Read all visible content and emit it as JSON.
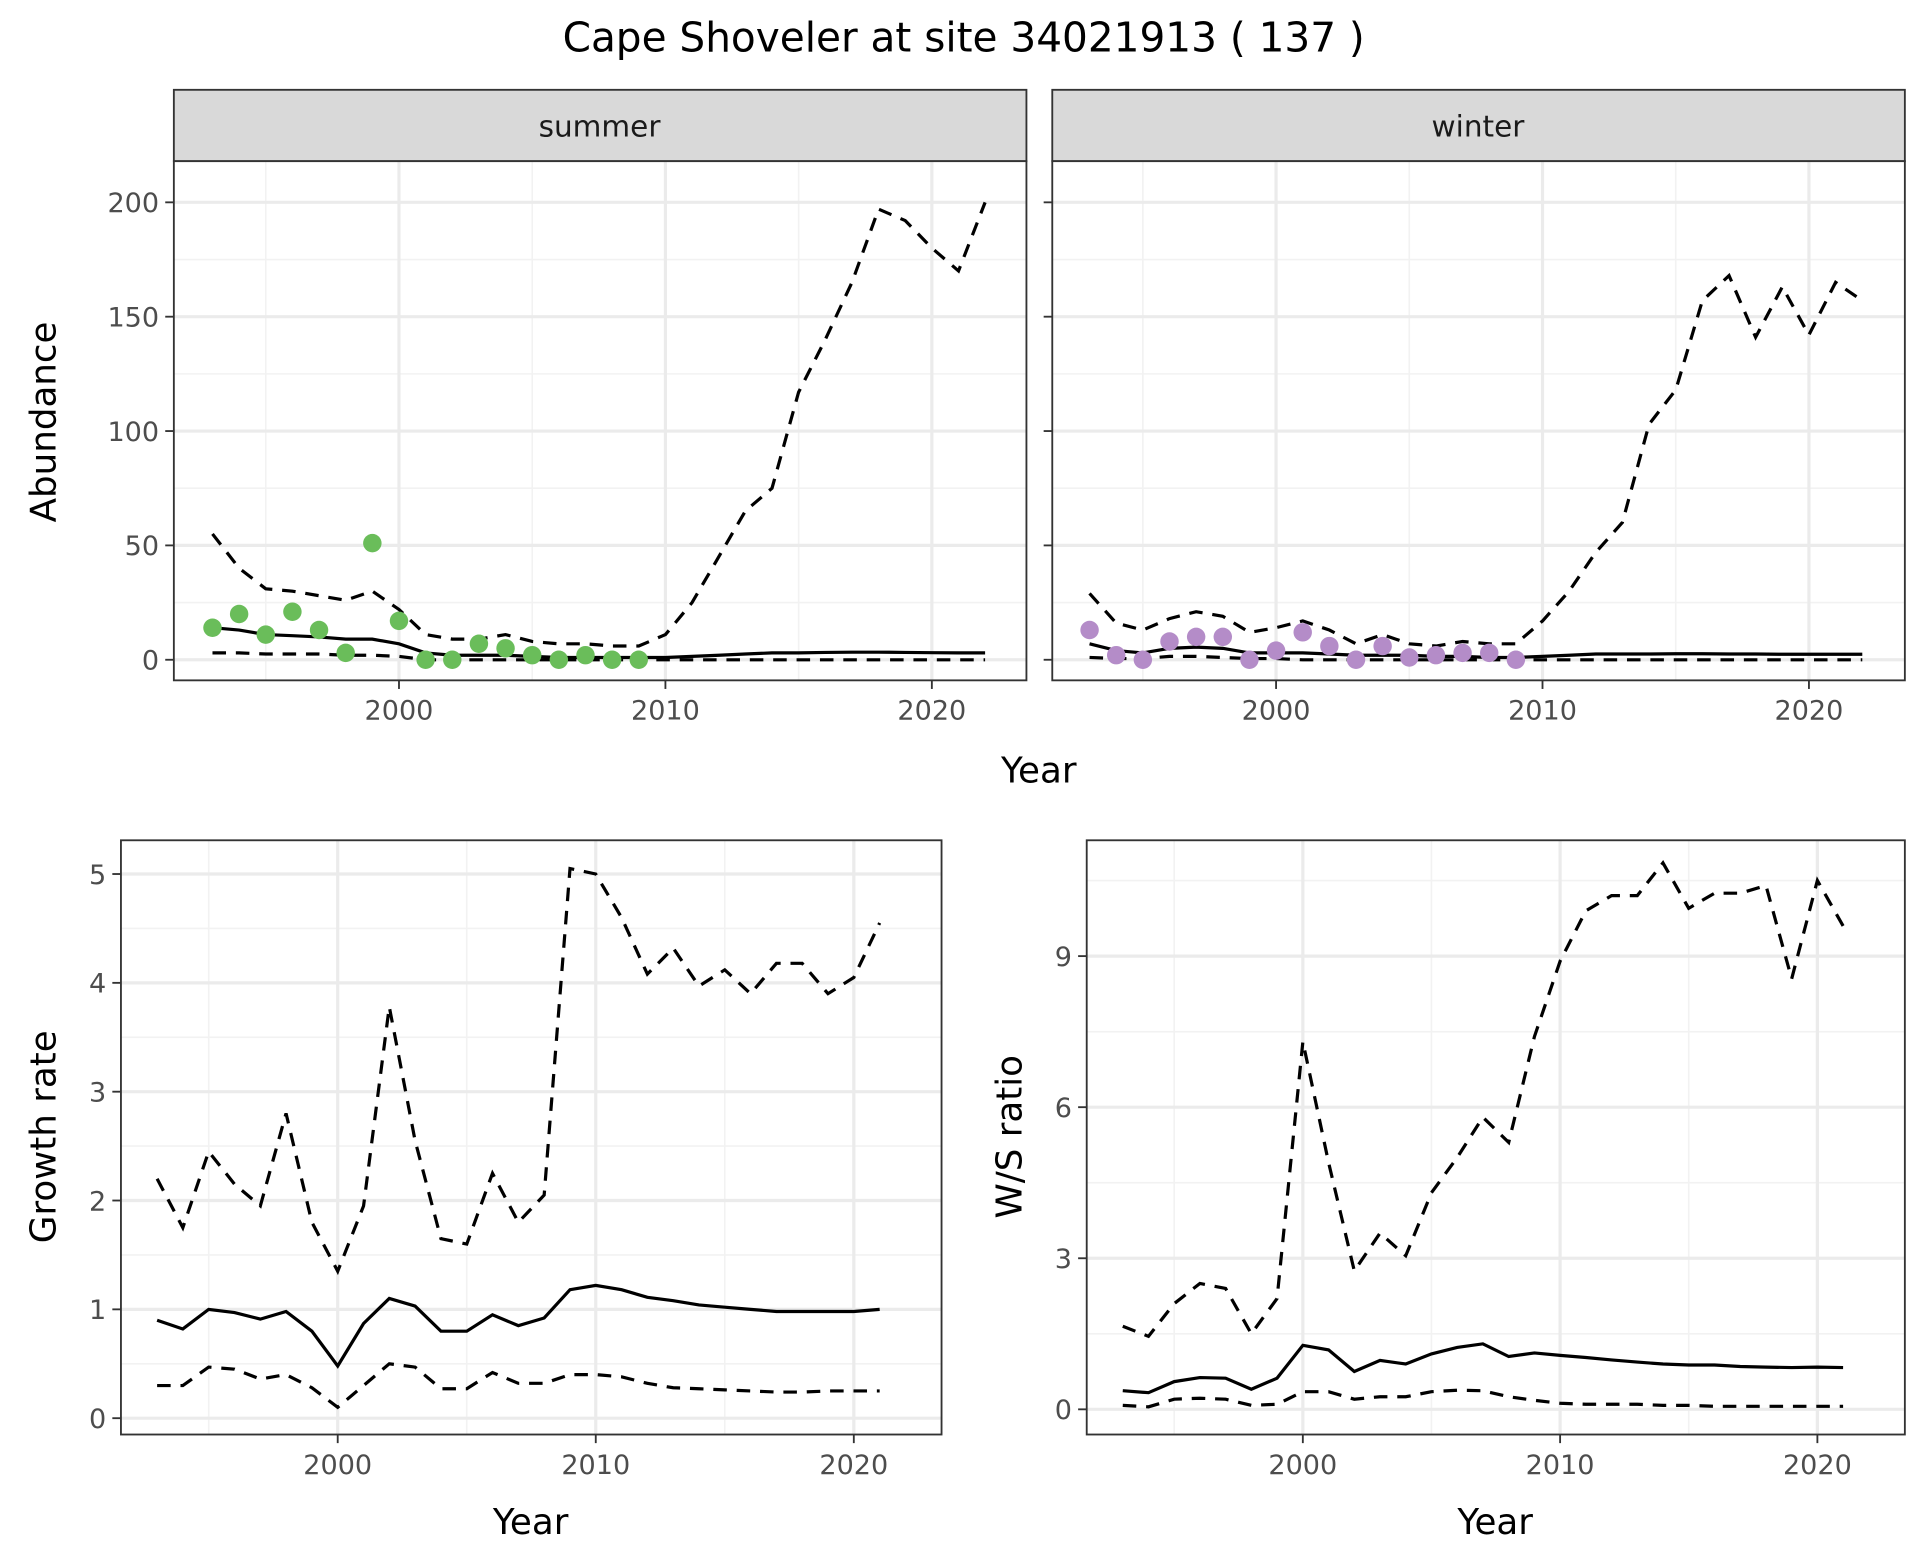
{
  "title": "Cape Shoveler at site 34021913 ( 137 )",
  "colors": {
    "summer": "#6abd5a",
    "winter": "#b48cc8",
    "line": "#000000",
    "strip": "#d9d9d9"
  },
  "chart_data": [
    {
      "type": "line",
      "id": "summer",
      "strip": "summer",
      "xlabel": "Year",
      "ylabel": "Abundance",
      "xlim": [
        1991.55,
        2023.55
      ],
      "ylim": [
        -9,
        218
      ],
      "xticks": [
        2000,
        2010,
        2020
      ],
      "xticks_labels": [
        "2000",
        "2010",
        "2020"
      ],
      "xminor": [
        1995,
        2005,
        2015
      ],
      "yticks": [
        0,
        50,
        100,
        150,
        200
      ],
      "yticks_labels": [
        "0",
        "50",
        "100",
        "150",
        "200"
      ],
      "yminor": [
        25,
        75,
        125,
        175
      ],
      "show_ylabels": true,
      "x": [
        1993,
        1994,
        1995,
        1996,
        1997,
        1998,
        1999,
        2000,
        2001,
        2002,
        2003,
        2004,
        2005,
        2006,
        2007,
        2008,
        2009,
        2010,
        2011,
        2012,
        2013,
        2014,
        2015,
        2016,
        2017,
        2018,
        2019,
        2020,
        2021,
        2022
      ],
      "mean": [
        14,
        13,
        11,
        10.5,
        10,
        9,
        9,
        7,
        3,
        2,
        2,
        2,
        1.5,
        1,
        1,
        1,
        1,
        1,
        1.5,
        2,
        2.5,
        3,
        3,
        3.2,
        3.3,
        3.3,
        3.2,
        3.1,
        3,
        3
      ],
      "upper": [
        55,
        40,
        31,
        30,
        28,
        26,
        30,
        22,
        11,
        9,
        9,
        11,
        8,
        7,
        7,
        6,
        6,
        11,
        25,
        45,
        65,
        75,
        117,
        140,
        165,
        197,
        192,
        180,
        170,
        200
      ],
      "lower": [
        3,
        3,
        2.5,
        2.5,
        2.5,
        2,
        2,
        1.5,
        0,
        0,
        0,
        0,
        0,
        0,
        0,
        0,
        0,
        0,
        0,
        0,
        0,
        0,
        0,
        0,
        0,
        0,
        0,
        0,
        0,
        0
      ],
      "points_x": [
        1993,
        1994,
        1995,
        1996,
        1997,
        1998,
        1999,
        2000,
        2001,
        2002,
        2003,
        2004,
        2005,
        2006,
        2007,
        2008,
        2009
      ],
      "points_y": [
        14,
        20,
        11,
        21,
        13,
        3,
        51,
        17,
        0,
        0,
        7,
        5,
        2,
        0,
        2,
        0,
        0
      ]
    },
    {
      "type": "line",
      "id": "winter",
      "strip": "winter",
      "xlabel": "Year",
      "ylabel": "",
      "xlim": [
        1991.6,
        2023.6
      ],
      "ylim": [
        -9,
        218
      ],
      "xticks": [
        2000,
        2010,
        2020
      ],
      "xticks_labels": [
        "2000",
        "2010",
        "2020"
      ],
      "xminor": [
        1995,
        2005,
        2015
      ],
      "yticks": [
        0,
        50,
        100,
        150,
        200
      ],
      "yticks_labels": [
        "0",
        "50",
        "100",
        "150",
        "200"
      ],
      "yminor": [
        25,
        75,
        125,
        175
      ],
      "show_ylabels": false,
      "x": [
        1993,
        1994,
        1995,
        1996,
        1997,
        1998,
        1999,
        2000,
        2001,
        2002,
        2003,
        2004,
        2005,
        2006,
        2007,
        2008,
        2009,
        2010,
        2011,
        2012,
        2013,
        2014,
        2015,
        2016,
        2017,
        2018,
        2019,
        2020,
        2021,
        2022
      ],
      "mean": [
        7,
        4,
        3,
        5,
        5.5,
        5,
        3,
        3,
        3,
        2.5,
        2,
        2,
        2,
        1.5,
        1.5,
        1,
        1,
        1.5,
        2,
        2.5,
        2.5,
        2.5,
        2.6,
        2.6,
        2.5,
        2.5,
        2.4,
        2.4,
        2.4,
        2.4
      ],
      "upper": [
        29,
        16,
        13,
        18,
        21,
        19,
        12,
        14,
        17,
        13,
        7,
        11,
        7,
        6,
        8,
        7,
        7,
        17,
        30,
        47,
        60,
        103,
        118,
        157,
        168,
        141,
        163,
        142,
        165,
        157
      ],
      "lower": [
        1,
        0.5,
        0.5,
        1.5,
        1.5,
        1,
        0.5,
        0.5,
        0,
        0,
        0,
        0,
        0,
        0,
        0,
        0,
        0,
        0,
        0,
        0,
        0,
        0,
        0,
        0,
        0,
        0,
        0,
        0,
        0,
        0
      ],
      "points_x": [
        1993,
        1994,
        1995,
        1996,
        1997,
        1998,
        1999,
        2000,
        2001,
        2002,
        2003,
        2004,
        2005,
        2006,
        2007,
        2008,
        2009
      ],
      "points_y": [
        13,
        2,
        0,
        8,
        10,
        10,
        0,
        4,
        12,
        6,
        0,
        6,
        1,
        2,
        3,
        3,
        0
      ]
    },
    {
      "type": "line",
      "id": "growth",
      "xlabel": "Year",
      "ylabel": "Growth rate",
      "xlim": [
        1991.6,
        2023.4
      ],
      "ylim": [
        -0.15,
        5.31
      ],
      "xticks": [
        2000,
        2010,
        2020
      ],
      "xticks_labels": [
        "2000",
        "2010",
        "2020"
      ],
      "xminor": [
        1995,
        2005,
        2015
      ],
      "yticks": [
        0,
        1,
        2,
        3,
        4,
        5
      ],
      "yticks_labels": [
        "0",
        "1",
        "2",
        "3",
        "4",
        "5"
      ],
      "yminor": [
        0.5,
        1.5,
        2.5,
        3.5,
        4.5
      ],
      "show_ylabels": true,
      "x": [
        1993,
        1994,
        1995,
        1996,
        1997,
        1998,
        1999,
        2000,
        2001,
        2002,
        2003,
        2004,
        2005,
        2006,
        2007,
        2008,
        2009,
        2010,
        2011,
        2012,
        2013,
        2014,
        2015,
        2016,
        2017,
        2018,
        2019,
        2020,
        2021
      ],
      "mean": [
        0.9,
        0.82,
        1.0,
        0.97,
        0.91,
        0.98,
        0.8,
        0.48,
        0.87,
        1.1,
        1.03,
        0.8,
        0.8,
        0.95,
        0.85,
        0.92,
        1.18,
        1.22,
        1.18,
        1.11,
        1.08,
        1.04,
        1.02,
        1.0,
        0.98,
        0.98,
        0.98,
        0.98,
        1.0
      ],
      "upper": [
        2.2,
        1.75,
        2.45,
        2.15,
        1.95,
        2.8,
        1.8,
        1.35,
        1.95,
        3.78,
        2.55,
        1.65,
        1.6,
        2.25,
        1.8,
        2.05,
        5.05,
        5.0,
        4.6,
        4.08,
        4.32,
        3.97,
        4.12,
        3.9,
        4.18,
        4.18,
        3.9,
        4.05,
        4.55
      ],
      "lower": [
        0.3,
        0.3,
        0.47,
        0.45,
        0.36,
        0.4,
        0.28,
        0.1,
        0.3,
        0.5,
        0.47,
        0.27,
        0.27,
        0.42,
        0.32,
        0.32,
        0.4,
        0.4,
        0.38,
        0.32,
        0.28,
        0.27,
        0.26,
        0.25,
        0.24,
        0.24,
        0.25,
        0.25,
        0.25
      ]
    },
    {
      "type": "line",
      "id": "ratio",
      "xlabel": "Year",
      "ylabel": "W/S ratio",
      "xlim": [
        1991.6,
        2023.4
      ],
      "ylim": [
        -0.5,
        11.3
      ],
      "xticks": [
        2000,
        2010,
        2020
      ],
      "xticks_labels": [
        "2000",
        "2010",
        "2020"
      ],
      "xminor": [
        1995,
        2005,
        2015
      ],
      "yticks": [
        0,
        3,
        6,
        9
      ],
      "yticks_labels": [
        "0",
        "3",
        "6",
        "9"
      ],
      "yminor": [
        1.5,
        4.5,
        7.5,
        10.5
      ],
      "show_ylabels": true,
      "x": [
        1993,
        1994,
        1995,
        1996,
        1997,
        1998,
        1999,
        2000,
        2001,
        2002,
        2003,
        2004,
        2005,
        2006,
        2007,
        2008,
        2009,
        2010,
        2011,
        2012,
        2013,
        2014,
        2015,
        2016,
        2017,
        2018,
        2019,
        2020,
        2021
      ],
      "mean": [
        0.37,
        0.33,
        0.55,
        0.63,
        0.62,
        0.4,
        0.62,
        1.27,
        1.18,
        0.75,
        0.97,
        0.9,
        1.1,
        1.23,
        1.3,
        1.05,
        1.12,
        1.07,
        1.03,
        0.98,
        0.94,
        0.9,
        0.88,
        0.88,
        0.85,
        0.84,
        0.83,
        0.84,
        0.83
      ],
      "upper": [
        1.65,
        1.45,
        2.1,
        2.5,
        2.4,
        1.5,
        2.2,
        7.3,
        4.9,
        2.75,
        3.5,
        3.05,
        4.3,
        5.0,
        5.8,
        5.3,
        7.4,
        8.9,
        9.9,
        10.2,
        10.2,
        10.85,
        9.95,
        10.25,
        10.25,
        10.4,
        8.55,
        10.5,
        9.6
      ],
      "lower": [
        0.08,
        0.05,
        0.2,
        0.22,
        0.2,
        0.08,
        0.1,
        0.35,
        0.35,
        0.2,
        0.25,
        0.25,
        0.35,
        0.38,
        0.37,
        0.25,
        0.18,
        0.12,
        0.1,
        0.1,
        0.1,
        0.08,
        0.08,
        0.06,
        0.06,
        0.06,
        0.06,
        0.06,
        0.06
      ]
    }
  ]
}
